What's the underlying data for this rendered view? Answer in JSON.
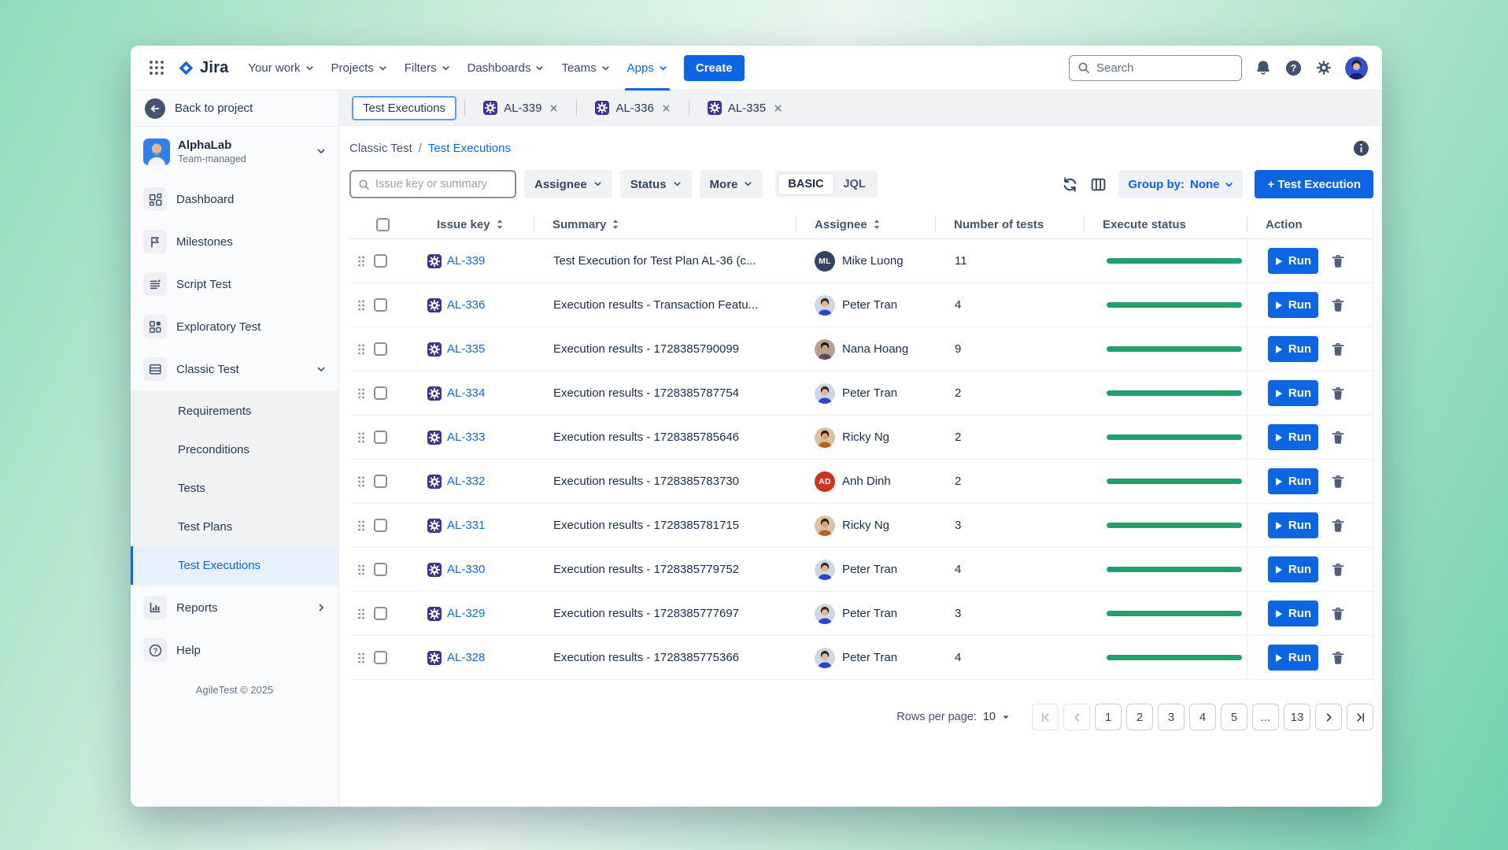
{
  "topnav": {
    "logo_text": "Jira",
    "items": [
      {
        "label": "Your work"
      },
      {
        "label": "Projects"
      },
      {
        "label": "Filters"
      },
      {
        "label": "Dashboards"
      },
      {
        "label": "Teams"
      },
      {
        "label": "Apps",
        "active": true
      }
    ],
    "create_label": "Create",
    "search_placeholder": "Search"
  },
  "sidebar": {
    "back_label": "Back to project",
    "project": {
      "name": "AlphaLab",
      "type": "Team-managed"
    },
    "items": [
      {
        "label": "Dashboard",
        "icon": "dashboard-icon"
      },
      {
        "label": "Milestones",
        "icon": "flag-icon"
      },
      {
        "label": "Script Test",
        "icon": "script-icon"
      },
      {
        "label": "Exploratory Test",
        "icon": "exploratory-icon"
      },
      {
        "label": "Classic Test",
        "icon": "classic-icon",
        "chev_down": true
      }
    ],
    "subitems": [
      {
        "label": "Requirements"
      },
      {
        "label": "Preconditions"
      },
      {
        "label": "Tests"
      },
      {
        "label": "Test Plans"
      },
      {
        "label": "Test Executions",
        "active": true
      }
    ],
    "bottom_items": [
      {
        "label": "Reports",
        "icon": "reports-icon",
        "chev_right": true
      },
      {
        "label": "Help",
        "icon": "help-icon"
      }
    ],
    "footer": "AgileTest © 2025"
  },
  "tabs": [
    {
      "label": "Test Executions",
      "active": true
    },
    {
      "label": "AL-339",
      "has_icon": true,
      "closable": true
    },
    {
      "label": "AL-336",
      "has_icon": true,
      "closable": true
    },
    {
      "label": "AL-335",
      "has_icon": true,
      "closable": true
    }
  ],
  "breadcrumb": {
    "parent": "Classic Test",
    "separator": "/",
    "current": "Test Executions"
  },
  "filters": {
    "search_placeholder": "Issue key or summary",
    "dropdowns": [
      {
        "label": "Assignee"
      },
      {
        "label": "Status"
      },
      {
        "label": "More"
      }
    ],
    "modes": [
      {
        "label": "BASIC",
        "selected": true
      },
      {
        "label": "JQL"
      }
    ],
    "group_by_label": "Group by:",
    "group_by_value": "None",
    "create_button": "+ Test Execution"
  },
  "table": {
    "columns": [
      {
        "label": "Issue key",
        "sortable": true
      },
      {
        "label": "Summary",
        "sortable": true,
        "divided": true
      },
      {
        "label": "Assignee",
        "sortable": true,
        "divided": true
      },
      {
        "label": "Number of tests",
        "divided": true
      },
      {
        "label": "Execute status",
        "divided": true
      },
      {
        "label": "Action",
        "divided": true
      }
    ],
    "run_label": "Run",
    "rows": [
      {
        "key": "AL-339",
        "summary": "Test Execution for Test Plan AL-36 (c...",
        "assignee": "Mike Luong",
        "avatar": {
          "kind": "initials",
          "text": "ML",
          "bg": "#344563"
        },
        "tests": "11",
        "progress": [
          {
            "color": "#22a06b",
            "pct": 100
          }
        ]
      },
      {
        "key": "AL-336",
        "summary": "Execution results - Transaction Featu...",
        "assignee": "Peter Tran",
        "avatar": {
          "kind": "photo",
          "bg": "#cdd8e4",
          "skin": "#e9b68c",
          "hair": "#2f2a26",
          "shirt": "#2d43d2"
        },
        "tests": "4",
        "progress": [
          {
            "color": "#22a06b",
            "pct": 100
          }
        ]
      },
      {
        "key": "AL-335",
        "summary": "Execution results - 1728385790099",
        "assignee": "Nana Hoang",
        "avatar": {
          "kind": "photo",
          "bg": "#b7a18e",
          "skin": "#caa07a",
          "hair": "#1f1713",
          "shirt": "#5d4a63"
        },
        "tests": "9",
        "progress": [
          {
            "color": "#22a06b",
            "pct": 100
          }
        ]
      },
      {
        "key": "AL-334",
        "summary": "Execution results - 1728385787754",
        "assignee": "Peter Tran",
        "avatar": {
          "kind": "photo",
          "bg": "#cdd8e4",
          "skin": "#e9b68c",
          "hair": "#2f2a26",
          "shirt": "#2d43d2"
        },
        "tests": "2",
        "progress": [
          {
            "color": "#22a06b",
            "pct": 100
          }
        ]
      },
      {
        "key": "AL-333",
        "summary": "Execution results - 1728385785646",
        "assignee": "Ricky Ng",
        "avatar": {
          "kind": "photo",
          "bg": "#d9c2a3",
          "skin": "#d8a476",
          "hair": "#2b1d12",
          "shirt": "#b5651d"
        },
        "tests": "2",
        "progress": [
          {
            "color": "#22a06b",
            "pct": 100
          }
        ]
      },
      {
        "key": "AL-332",
        "summary": "Execution results - 1728385783730",
        "assignee": "Anh Dinh",
        "avatar": {
          "kind": "initials",
          "text": "AD",
          "bg": "#ca3521"
        },
        "tests": "2",
        "progress": [
          {
            "color": "#22a06b",
            "pct": 100
          }
        ]
      },
      {
        "key": "AL-331",
        "summary": "Execution results - 1728385781715",
        "assignee": "Ricky Ng",
        "avatar": {
          "kind": "photo",
          "bg": "#d9c2a3",
          "skin": "#d8a476",
          "hair": "#2b1d12",
          "shirt": "#b5651d"
        },
        "tests": "3",
        "progress": [
          {
            "color": "#22a06b",
            "pct": 100
          }
        ]
      },
      {
        "key": "AL-330",
        "summary": "Execution results - 1728385779752",
        "assignee": "Peter Tran",
        "avatar": {
          "kind": "photo",
          "bg": "#cdd8e4",
          "skin": "#e9b68c",
          "hair": "#2f2a26",
          "shirt": "#2d43d2"
        },
        "tests": "4",
        "progress": [
          {
            "color": "#22a06b",
            "pct": 100
          }
        ]
      },
      {
        "key": "AL-329",
        "summary": "Execution results - 1728385777697",
        "assignee": "Peter Tran",
        "avatar": {
          "kind": "photo",
          "bg": "#cdd8e4",
          "skin": "#e9b68c",
          "hair": "#2f2a26",
          "shirt": "#2d43d2"
        },
        "tests": "3",
        "progress": [
          {
            "color": "#22a06b",
            "pct": 100
          }
        ]
      },
      {
        "key": "AL-328",
        "summary": "Execution results - 1728385775366",
        "assignee": "Peter Tran",
        "avatar": {
          "kind": "photo",
          "bg": "#cdd8e4",
          "skin": "#e9b68c",
          "hair": "#2f2a26",
          "shirt": "#2d43d2"
        },
        "tests": "4",
        "progress": [
          {
            "color": "#22a06b",
            "pct": 100
          }
        ]
      }
    ]
  },
  "pagination": {
    "rows_per_page_label": "Rows per page:",
    "rows_per_page_value": "10",
    "items": [
      {
        "icon": "page-first-icon",
        "disabled": true,
        "name": "first-page-button"
      },
      {
        "icon": "page-prev-icon",
        "disabled": true,
        "name": "prev-page-button"
      },
      {
        "label": "1",
        "active": true,
        "name": "page-button"
      },
      {
        "label": "2",
        "name": "page-button"
      },
      {
        "label": "3",
        "name": "page-button"
      },
      {
        "label": "4",
        "name": "page-button"
      },
      {
        "label": "5",
        "name": "page-button"
      },
      {
        "label": "...",
        "ellipsis": true,
        "name": "page-ellipsis"
      },
      {
        "label": "13",
        "name": "page-button"
      },
      {
        "icon": "page-next-icon",
        "name": "next-page-button"
      },
      {
        "icon": "page-last-icon",
        "name": "last-page-button"
      }
    ]
  }
}
